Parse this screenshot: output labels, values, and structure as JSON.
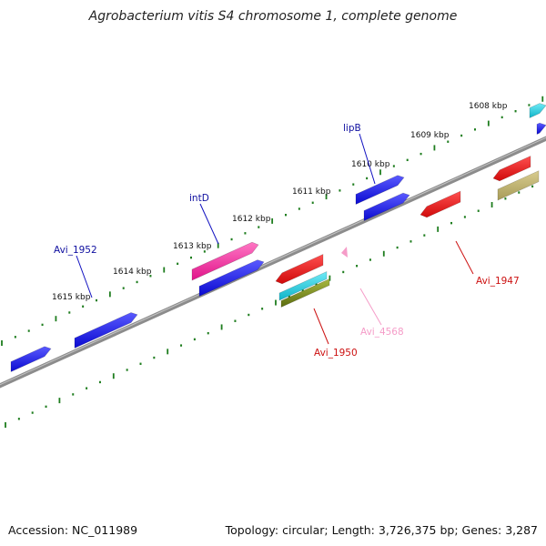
{
  "title": "Agrobacterium vitis S4 chromosome 1, complete genome",
  "footer": {
    "accession": "Accession: NC_011989",
    "summary": "Topology: circular; Length: 3,726,375 bp; Genes: 3,287"
  },
  "colors": {
    "backbone": "#8c8c8c",
    "ticks": "#1e7d1e",
    "forward": "#1010e0",
    "reverse": "#e01010",
    "magenta": "#ee2299",
    "cyan": "#15c8dc",
    "olive": "#7a8a20",
    "khaki": "#bcb070",
    "pink": "#f59cc8"
  },
  "kbp_labels": [
    "1608 kbp",
    "1609 kbp",
    "1610 kbp",
    "1611 kbp",
    "1612 kbp",
    "1613 kbp",
    "1614 kbp",
    "1615 kbp"
  ],
  "gene_labels": [
    {
      "text": "lipB",
      "color": "#1010a0"
    },
    {
      "text": "intD",
      "color": "#1010a0"
    },
    {
      "text": "Avi_1952",
      "color": "#1010a0"
    },
    {
      "text": "Avi_1947",
      "color": "#cc1010"
    },
    {
      "text": "Avi_1950",
      "color": "#cc1010"
    },
    {
      "text": "Avi_4568",
      "color": "#f59cc8"
    }
  ]
}
